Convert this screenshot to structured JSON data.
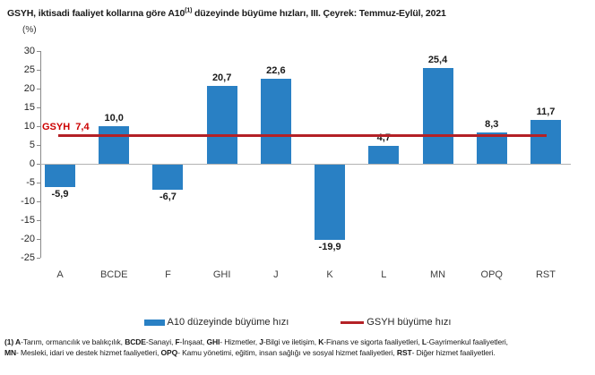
{
  "title": {
    "prefix": "GSYH, iktisadi faaliyet kollarına göre A10",
    "superscript": "(1)",
    "suffix": " düzeyinde büyüme hızları, III. Çeyrek: Temmuz-Eylül, 2021"
  },
  "axis_unit": "(%)",
  "chart_data": {
    "type": "bar",
    "categories": [
      "A",
      "BCDE",
      "F",
      "GHI",
      "J",
      "K",
      "L",
      "MN",
      "OPQ",
      "RST"
    ],
    "values": [
      -5.9,
      10.0,
      -6.7,
      20.7,
      22.6,
      -19.9,
      4.7,
      25.4,
      8.3,
      11.7
    ],
    "value_labels": [
      "-5,9",
      "10,0",
      "-6,7",
      "20,7",
      "22,6",
      "-19,9",
      "4,7",
      "25,4",
      "8,3",
      "11,7"
    ],
    "series_name": "A10 düzeyinde büyüme hızı",
    "reference_line": {
      "name": "GSYH büyüme hızı",
      "label": "GSYH  7,4",
      "value": 7.4
    },
    "ylabel": "(%)",
    "ylim": [
      -25,
      30
    ],
    "yticks": [
      30,
      25,
      20,
      15,
      10,
      5,
      0,
      -5,
      -10,
      -15,
      -20,
      -25
    ],
    "grid": "zero-line-only",
    "legend_position": "bottom",
    "bar_color": "#2980C4",
    "line_color": "#B42126",
    "ref_label_color": "#CC0000"
  },
  "legend": {
    "bar_label": "A10 düzeyinde büyüme hızı",
    "line_label": "GSYH büyüme hızı"
  },
  "footnote": {
    "line1_segments": [
      {
        "text": "(1) A",
        "bold": true
      },
      {
        "text": "-Tarım, ormancılık ve balıkçılık, ",
        "bold": false
      },
      {
        "text": "BCDE",
        "bold": true
      },
      {
        "text": "-Sanayi, ",
        "bold": false
      },
      {
        "text": "F",
        "bold": true
      },
      {
        "text": "-İnşaat, ",
        "bold": false
      },
      {
        "text": "GHI",
        "bold": true
      },
      {
        "text": "- Hizmetler, ",
        "bold": false
      },
      {
        "text": "J",
        "bold": true
      },
      {
        "text": "-Bilgi ve iletişim, ",
        "bold": false
      },
      {
        "text": "K",
        "bold": true
      },
      {
        "text": "-Finans ve sigorta faaliyetleri, ",
        "bold": false
      },
      {
        "text": "L",
        "bold": true
      },
      {
        "text": "-Gayrimenkul faaliyetleri,",
        "bold": false
      }
    ],
    "line2_segments": [
      {
        "text": "MN",
        "bold": true
      },
      {
        "text": "- Mesleki, idari ve destek hizmet faaliyetleri, ",
        "bold": false
      },
      {
        "text": "OPQ",
        "bold": true
      },
      {
        "text": "- Kamu yönetimi, eğitim, insan sağlığı ve sosyal hizmet faaliyetleri, ",
        "bold": false
      },
      {
        "text": "RST",
        "bold": true
      },
      {
        "text": "- Diğer hizmet faaliyetleri.",
        "bold": false
      }
    ]
  }
}
